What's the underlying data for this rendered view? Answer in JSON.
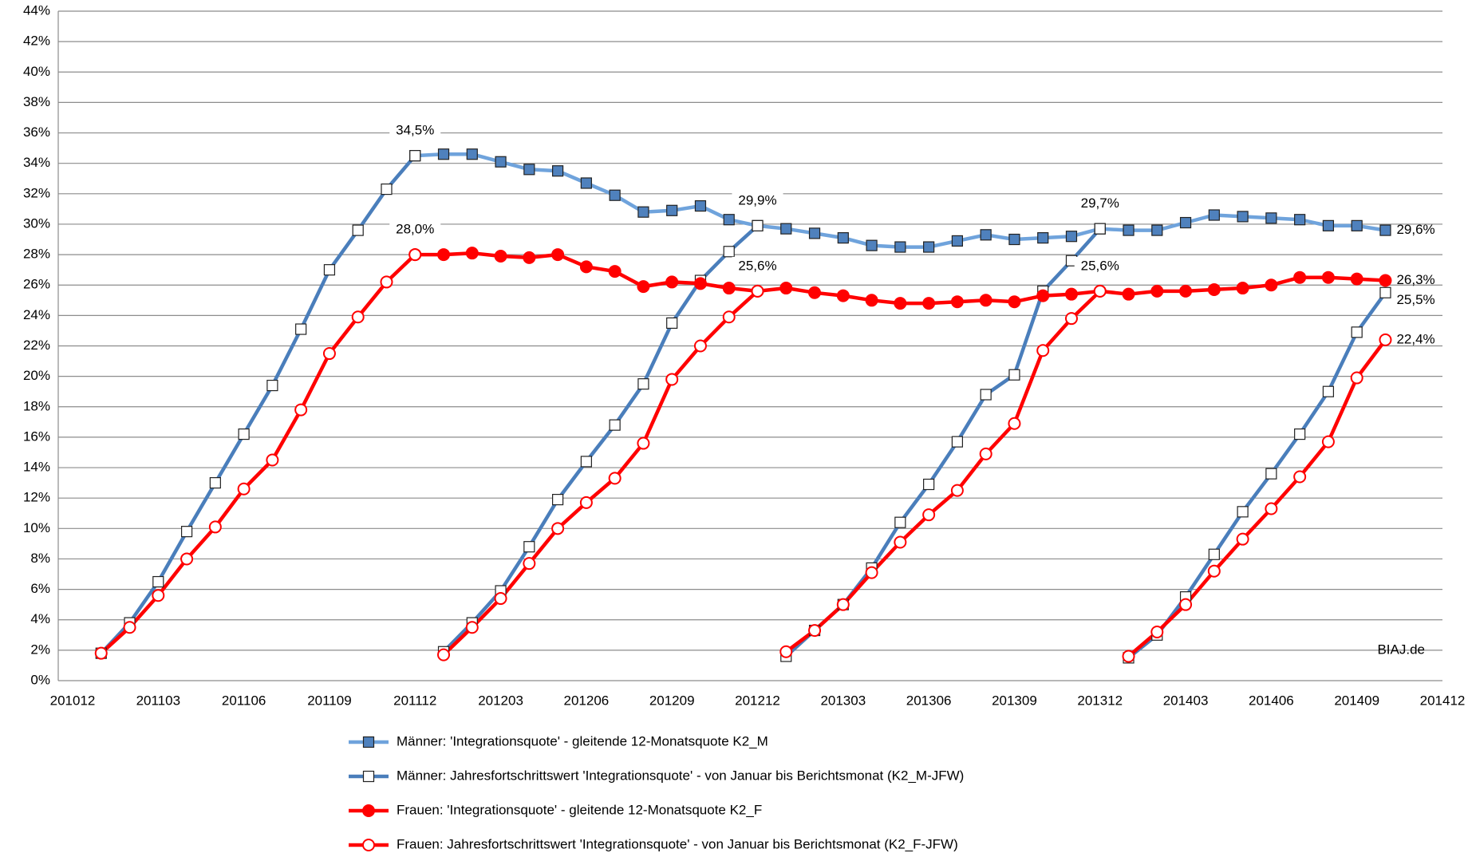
{
  "chart_data": {
    "type": "line",
    "categories": [
      "201012",
      null,
      null,
      "201103",
      null,
      null,
      "201106",
      null,
      null,
      "201109",
      null,
      null,
      "201112",
      null,
      null,
      "201203",
      null,
      null,
      "201206",
      null,
      null,
      "201209",
      null,
      null,
      "201212",
      null,
      null,
      "201303",
      null,
      null,
      "201306",
      null,
      null,
      "201309",
      null,
      null,
      "201312",
      null,
      null,
      "201403",
      null,
      null,
      "201406",
      null,
      null,
      "201409",
      null,
      null,
      "201412"
    ],
    "ylim": [
      0,
      44
    ],
    "yticks": [
      {
        "value": 0,
        "label": "0%"
      },
      {
        "value": 2,
        "label": "2%"
      },
      {
        "value": 4,
        "label": "4%"
      },
      {
        "value": 6,
        "label": "6%"
      },
      {
        "value": 8,
        "label": "8%"
      },
      {
        "value": 10,
        "label": "10%"
      },
      {
        "value": 12,
        "label": "12%"
      },
      {
        "value": 14,
        "label": "14%"
      },
      {
        "value": 16,
        "label": "16%"
      },
      {
        "value": 18,
        "label": "18%"
      },
      {
        "value": 20,
        "label": "20%"
      },
      {
        "value": 22,
        "label": "22%"
      },
      {
        "value": 24,
        "label": "24%"
      },
      {
        "value": 26,
        "label": "26%"
      },
      {
        "value": 28,
        "label": "28%"
      },
      {
        "value": 30,
        "label": "30%"
      },
      {
        "value": 32,
        "label": "32%"
      },
      {
        "value": 34,
        "label": "34%"
      },
      {
        "value": 36,
        "label": "36%"
      },
      {
        "value": 38,
        "label": "38%"
      },
      {
        "value": 40,
        "label": "40%"
      },
      {
        "value": 42,
        "label": "42%"
      },
      {
        "value": 44,
        "label": "44%"
      }
    ],
    "grid": true,
    "annotation": "BIAJ.de",
    "series": [
      {
        "name": "Männer: 'Integrationsquote' - gleitende 12-Monatsquote K2_M",
        "color": "#6fa3dc",
        "marker": "square",
        "marker_fill": "#4f81bd",
        "yearly_restart": false,
        "values": [
          null,
          null,
          null,
          null,
          null,
          null,
          null,
          null,
          null,
          null,
          null,
          null,
          34.5,
          34.6,
          34.6,
          34.1,
          33.6,
          33.5,
          32.7,
          31.9,
          30.8,
          30.9,
          31.2,
          30.3,
          29.9,
          29.7,
          29.4,
          29.1,
          28.6,
          28.5,
          28.5,
          28.9,
          29.3,
          29.0,
          29.1,
          29.2,
          29.7,
          29.6,
          29.6,
          30.1,
          30.6,
          30.5,
          30.4,
          30.3,
          29.9,
          29.9,
          29.6,
          null,
          null
        ],
        "value_labels": [
          null,
          null,
          null,
          null,
          null,
          null,
          null,
          null,
          null,
          null,
          null,
          null,
          "34,5%",
          null,
          null,
          null,
          null,
          null,
          null,
          null,
          null,
          null,
          null,
          null,
          "29,9%",
          null,
          null,
          null,
          null,
          null,
          null,
          null,
          null,
          null,
          null,
          null,
          "29,7%",
          null,
          null,
          null,
          null,
          null,
          null,
          null,
          null,
          null,
          "29,6%",
          null,
          null
        ]
      },
      {
        "name": "Männer: Jahresfortschrittswert 'Integrationsquote' - von Januar bis Berichtsmonat (K2_M-JFW)",
        "color": "#4a7ebb",
        "marker": "square",
        "marker_fill": "#ffffff",
        "yearly_restart": true,
        "values": [
          null,
          1.8,
          3.8,
          6.5,
          9.8,
          13.0,
          16.2,
          19.4,
          23.1,
          27.0,
          29.6,
          32.3,
          34.5,
          1.9,
          3.8,
          5.9,
          8.8,
          11.9,
          14.4,
          16.8,
          19.5,
          23.5,
          26.3,
          28.2,
          29.9,
          1.6,
          3.3,
          5.0,
          7.4,
          10.4,
          12.9,
          15.7,
          18.8,
          20.1,
          25.6,
          27.6,
          29.7,
          1.5,
          3.0,
          5.5,
          8.3,
          11.1,
          13.6,
          16.2,
          19.0,
          22.9,
          25.5,
          null,
          null
        ],
        "value_labels": [
          null,
          null,
          null,
          null,
          null,
          null,
          null,
          null,
          null,
          null,
          null,
          null,
          null,
          null,
          null,
          null,
          null,
          null,
          null,
          null,
          null,
          null,
          null,
          null,
          null,
          null,
          null,
          null,
          null,
          null,
          null,
          null,
          null,
          null,
          null,
          null,
          null,
          null,
          null,
          null,
          null,
          null,
          null,
          null,
          null,
          null,
          "25,5%",
          null,
          null
        ]
      },
      {
        "name": "Frauen: 'Integrationsquote' - gleitende 12-Monatsquote K2_F",
        "color": "#ff0000",
        "marker": "circle",
        "marker_fill": "#ff0000",
        "yearly_restart": false,
        "values": [
          null,
          null,
          null,
          null,
          null,
          null,
          null,
          null,
          null,
          null,
          null,
          null,
          28.0,
          28.0,
          28.1,
          27.9,
          27.8,
          28.0,
          27.2,
          26.9,
          25.9,
          26.2,
          26.1,
          25.8,
          25.6,
          25.8,
          25.5,
          25.3,
          25.0,
          24.8,
          24.8,
          24.9,
          25.0,
          24.9,
          25.3,
          25.4,
          25.6,
          25.4,
          25.6,
          25.6,
          25.7,
          25.8,
          26.0,
          26.5,
          26.5,
          26.4,
          26.3,
          null,
          null
        ],
        "value_labels": [
          null,
          null,
          null,
          null,
          null,
          null,
          null,
          null,
          null,
          null,
          null,
          null,
          "28,0%",
          null,
          null,
          null,
          null,
          null,
          null,
          null,
          null,
          null,
          null,
          null,
          "25,6%",
          null,
          null,
          null,
          null,
          null,
          null,
          null,
          null,
          null,
          null,
          null,
          "25,6%",
          null,
          null,
          null,
          null,
          null,
          null,
          null,
          null,
          null,
          "26,3%",
          null,
          null
        ]
      },
      {
        "name": "Frauen: Jahresfortschrittswert 'Integrationsquote' - von Januar bis Berichtsmonat (K2_F-JFW)",
        "color": "#ff0000",
        "marker": "circle",
        "marker_fill": "#ffffff",
        "yearly_restart": true,
        "values": [
          null,
          1.8,
          3.5,
          5.6,
          8.0,
          10.1,
          12.6,
          14.5,
          17.8,
          21.5,
          23.9,
          26.2,
          28.0,
          1.7,
          3.5,
          5.4,
          7.7,
          10.0,
          11.7,
          13.3,
          15.6,
          19.8,
          22.0,
          23.9,
          25.6,
          1.9,
          3.3,
          5.0,
          7.1,
          9.1,
          10.9,
          12.5,
          14.9,
          16.9,
          21.7,
          23.8,
          25.6,
          1.6,
          3.2,
          5.0,
          7.2,
          9.3,
          11.3,
          13.4,
          15.7,
          19.9,
          22.4,
          null,
          null
        ],
        "value_labels": [
          null,
          null,
          null,
          null,
          null,
          null,
          null,
          null,
          null,
          null,
          null,
          null,
          null,
          null,
          null,
          null,
          null,
          null,
          null,
          null,
          null,
          null,
          null,
          null,
          null,
          null,
          null,
          null,
          null,
          null,
          null,
          null,
          null,
          null,
          null,
          null,
          null,
          null,
          null,
          null,
          null,
          null,
          null,
          null,
          null,
          null,
          "22,4%",
          null,
          null
        ]
      }
    ]
  }
}
